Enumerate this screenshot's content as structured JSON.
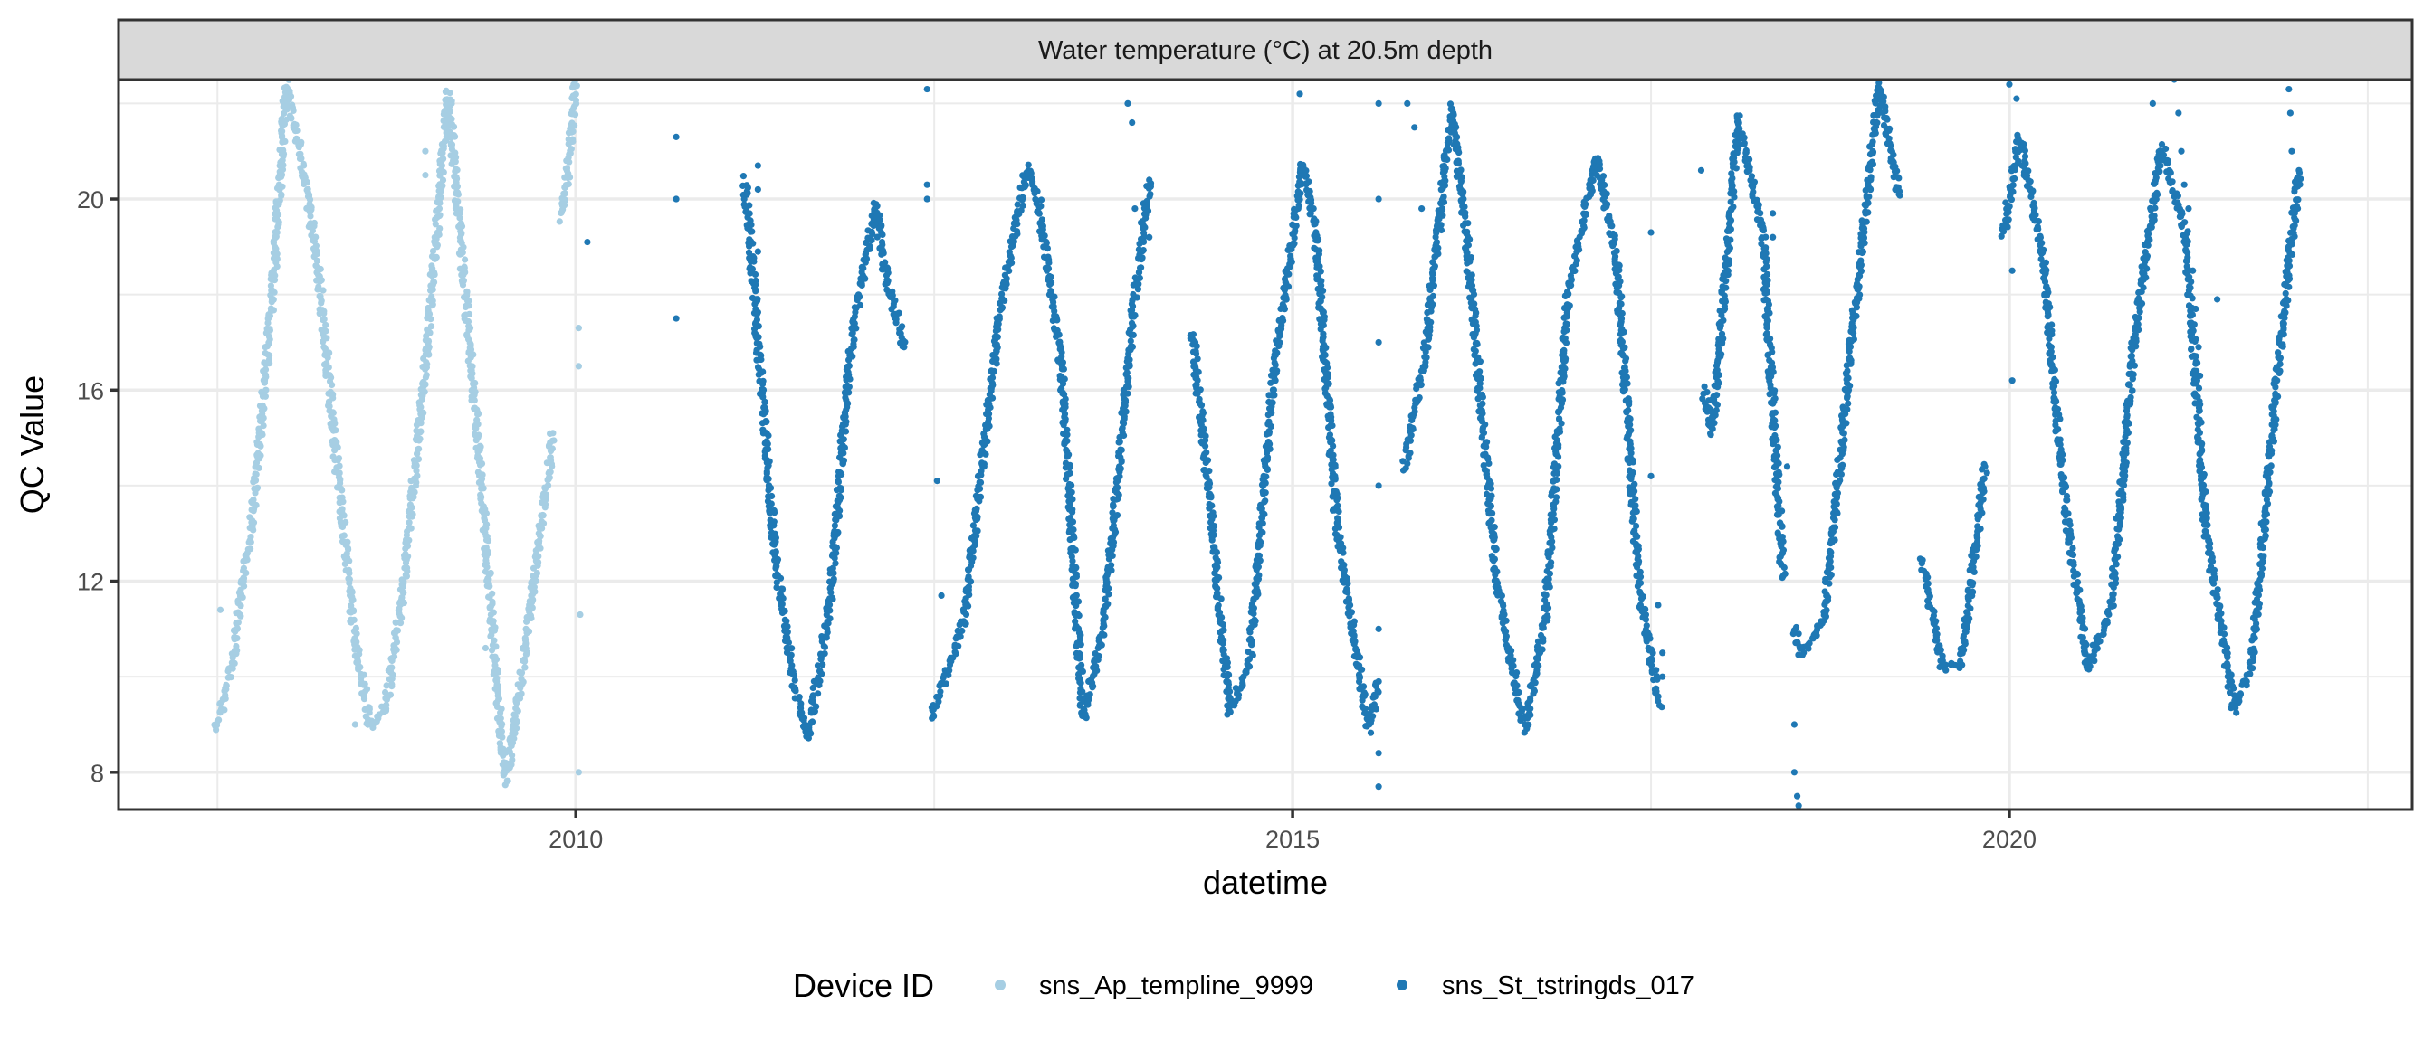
{
  "chart_data": {
    "type": "scatter",
    "title": "Water temperature (°C) at 20.5m depth",
    "xlabel": "datetime",
    "ylabel": "QC Value",
    "xlim": [
      2006.81,
      2022.81
    ],
    "ylim": [
      7.22,
      22.5
    ],
    "x_ticks": [
      2010,
      2015,
      2020
    ],
    "x_tick_labels": [
      "2010",
      "2015",
      "2020"
    ],
    "x_minor_ticks": [
      2007.5,
      2012.5,
      2017.5,
      2022.5
    ],
    "y_ticks": [
      8,
      12,
      16,
      20
    ],
    "y_tick_labels": [
      "8",
      "12",
      "16",
      "20"
    ],
    "y_minor_ticks": [
      10,
      14,
      18,
      22
    ],
    "grid": true,
    "legend": {
      "title": "Device ID",
      "position": "bottom"
    },
    "series": [
      {
        "name": "sns_Ap_templine_9999",
        "color": "#a6cee3",
        "segments": [
          [
            [
              2007.49,
              8.9
            ],
            [
              2007.6,
              10.2
            ],
            [
              2007.75,
              13.5
            ],
            [
              2007.88,
              17.8
            ],
            [
              2007.98,
              22.4
            ],
            [
              2008.1,
              20.6
            ],
            [
              2008.2,
              18.6
            ],
            [
              2008.33,
              14.5
            ],
            [
              2008.45,
              11.0
            ],
            [
              2008.57,
              8.9
            ],
            [
              2008.68,
              9.4
            ],
            [
              2008.8,
              12.0
            ],
            [
              2008.95,
              16.5
            ],
            [
              2009.11,
              22.2
            ],
            [
              2009.2,
              19.0
            ],
            [
              2009.33,
              14.5
            ],
            [
              2009.43,
              10.5
            ],
            [
              2009.51,
              7.8
            ],
            [
              2009.6,
              9.5
            ],
            [
              2009.72,
              12.3
            ],
            [
              2009.84,
              15.1
            ]
          ],
          [
            [
              2009.9,
              19.6
            ],
            [
              2009.96,
              21.0
            ],
            [
              2010.0,
              22.5
            ]
          ]
        ],
        "outliers": [
          [
            2007.52,
            11.4
          ],
          [
            2007.93,
            20.3
          ],
          [
            2007.88,
            17.9
          ],
          [
            2008.47,
            10.3
          ],
          [
            2008.46,
            9.0
          ],
          [
            2008.95,
            21.0
          ],
          [
            2008.95,
            20.5
          ],
          [
            2009.37,
            12.2
          ],
          [
            2009.37,
            10.6
          ],
          [
            2010.02,
            17.3
          ],
          [
            2010.02,
            16.5
          ],
          [
            2010.03,
            11.3
          ],
          [
            2010.02,
            8.0
          ]
        ]
      },
      {
        "name": "sns_St_tstringds_017",
        "color": "#1f78b4",
        "segments": [
          [
            [
              2011.18,
              20.4
            ],
            [
              2011.28,
              16.7
            ],
            [
              2011.39,
              12.5
            ],
            [
              2011.52,
              9.9
            ],
            [
              2011.62,
              8.7
            ],
            [
              2011.77,
              11.5
            ],
            [
              2011.91,
              16.7
            ],
            [
              2012.09,
              19.9
            ],
            [
              2012.17,
              18.3
            ],
            [
              2012.29,
              16.9
            ]
          ],
          [
            [
              2012.48,
              9.1
            ],
            [
              2012.71,
              11.2
            ],
            [
              2012.96,
              17.7
            ],
            [
              2013.15,
              20.7
            ],
            [
              2013.23,
              19.9
            ],
            [
              2013.39,
              16.4
            ],
            [
              2013.54,
              9.1
            ],
            [
              2013.69,
              11.2
            ],
            [
              2013.89,
              17.7
            ],
            [
              2014.0,
              20.4
            ]
          ],
          [
            [
              2014.3,
              17.2
            ],
            [
              2014.43,
              13.4
            ],
            [
              2014.56,
              9.3
            ],
            [
              2014.7,
              10.3
            ],
            [
              2014.86,
              16.1
            ],
            [
              2015.07,
              20.7
            ],
            [
              2015.16,
              19.4
            ],
            [
              2015.31,
              13.1
            ],
            [
              2015.53,
              8.9
            ],
            [
              2015.6,
              9.9
            ]
          ],
          [
            [
              2015.78,
              14.4
            ],
            [
              2015.92,
              16.7
            ],
            [
              2016.11,
              21.9
            ],
            [
              2016.21,
              19.3
            ],
            [
              2016.43,
              11.8
            ],
            [
              2016.62,
              8.9
            ],
            [
              2016.76,
              11.2
            ],
            [
              2016.92,
              18.0
            ],
            [
              2017.12,
              20.9
            ],
            [
              2017.26,
              18.7
            ],
            [
              2017.42,
              11.8
            ],
            [
              2017.56,
              9.4
            ]
          ],
          [
            [
              2017.87,
              16.0
            ],
            [
              2017.93,
              15.1
            ],
            [
              2018.11,
              21.7
            ],
            [
              2018.28,
              19.3
            ],
            [
              2018.42,
              12.1
            ]
          ],
          [
            [
              2018.5,
              11.0
            ],
            [
              2018.55,
              10.5
            ],
            [
              2018.71,
              11.2
            ],
            [
              2018.9,
              17.0
            ],
            [
              2019.09,
              22.4
            ],
            [
              2019.23,
              20.1
            ]
          ],
          [
            [
              2019.39,
              12.4
            ],
            [
              2019.53,
              10.2
            ],
            [
              2019.66,
              10.2
            ],
            [
              2019.83,
              14.4
            ]
          ],
          [
            [
              2019.96,
              19.3
            ],
            [
              2020.07,
              21.3
            ],
            [
              2020.24,
              18.7
            ],
            [
              2020.38,
              13.8
            ],
            [
              2020.55,
              10.2
            ],
            [
              2020.71,
              11.4
            ],
            [
              2020.87,
              17.0
            ],
            [
              2021.06,
              21.1
            ],
            [
              2021.23,
              19.3
            ],
            [
              2021.37,
              13.1
            ],
            [
              2021.57,
              9.3
            ],
            [
              2021.69,
              10.3
            ],
            [
              2021.86,
              16.0
            ],
            [
              2022.02,
              20.6
            ]
          ]
        ],
        "outliers": [
          [
            2010.7,
            21.3
          ],
          [
            2010.7,
            20.0
          ],
          [
            2010.7,
            17.5
          ],
          [
            2010.08,
            19.1
          ],
          [
            2011.27,
            20.7
          ],
          [
            2011.27,
            20.2
          ],
          [
            2011.27,
            18.9
          ],
          [
            2012.45,
            22.3
          ],
          [
            2012.45,
            20.3
          ],
          [
            2012.45,
            20.0
          ],
          [
            2012.52,
            14.1
          ],
          [
            2012.55,
            11.7
          ],
          [
            2013.85,
            22.0
          ],
          [
            2013.88,
            21.6
          ],
          [
            2013.9,
            19.8
          ],
          [
            2014.0,
            19.2
          ],
          [
            2015.05,
            22.2
          ],
          [
            2015.6,
            22.0
          ],
          [
            2015.6,
            20.0
          ],
          [
            2015.6,
            17.0
          ],
          [
            2015.6,
            14.0
          ],
          [
            2015.6,
            11.0
          ],
          [
            2015.6,
            8.4
          ],
          [
            2015.6,
            7.7
          ],
          [
            2015.8,
            22.0
          ],
          [
            2015.85,
            21.5
          ],
          [
            2015.9,
            19.8
          ],
          [
            2017.5,
            19.3
          ],
          [
            2017.5,
            14.2
          ],
          [
            2017.55,
            11.5
          ],
          [
            2017.58,
            10.5
          ],
          [
            2017.58,
            10.0
          ],
          [
            2017.85,
            20.6
          ],
          [
            2018.35,
            19.7
          ],
          [
            2018.35,
            19.2
          ],
          [
            2018.45,
            14.4
          ],
          [
            2018.5,
            9.0
          ],
          [
            2018.5,
            8.0
          ],
          [
            2018.52,
            7.5
          ],
          [
            2018.53,
            7.3
          ],
          [
            2020.0,
            22.4
          ],
          [
            2020.05,
            22.1
          ],
          [
            2020.02,
            18.5
          ],
          [
            2020.02,
            16.2
          ],
          [
            2021.0,
            22.0
          ],
          [
            2021.15,
            22.5
          ],
          [
            2021.18,
            21.8
          ],
          [
            2021.2,
            21.0
          ],
          [
            2021.22,
            20.3
          ],
          [
            2021.25,
            19.8
          ],
          [
            2021.28,
            18.5
          ],
          [
            2021.3,
            17.7
          ],
          [
            2021.32,
            16.9
          ],
          [
            2021.33,
            16.3
          ],
          [
            2021.45,
            17.9
          ],
          [
            2021.95,
            22.3
          ],
          [
            2021.96,
            21.8
          ],
          [
            2021.97,
            21.0
          ]
        ]
      }
    ]
  }
}
